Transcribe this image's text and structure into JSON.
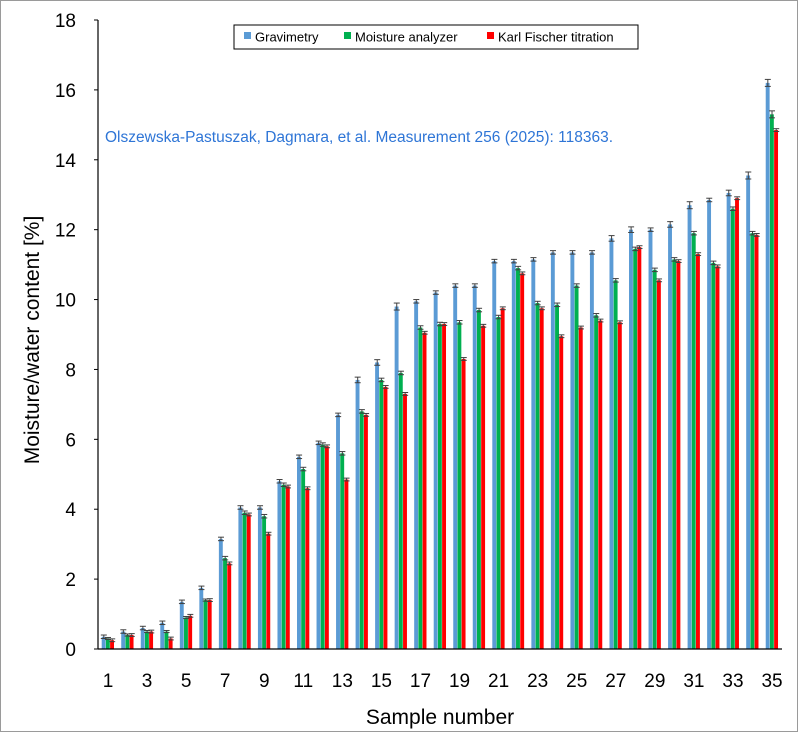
{
  "chart_data": {
    "type": "bar",
    "title": "",
    "xlabel": "Sample number",
    "ylabel": "Moisture/water content [%]",
    "ylim": [
      0,
      18
    ],
    "yticks": [
      "0",
      "2",
      "4",
      "6",
      "8",
      "10",
      "12",
      "14",
      "16",
      "18"
    ],
    "grid": false,
    "legend_position": "top-center",
    "categories": [
      "1",
      "2",
      "3",
      "4",
      "5",
      "6",
      "7",
      "8",
      "9",
      "10",
      "11",
      "12",
      "13",
      "14",
      "15",
      "16",
      "17",
      "18",
      "19",
      "20",
      "21",
      "22",
      "23",
      "24",
      "25",
      "26",
      "27",
      "28",
      "29",
      "30",
      "31",
      "32",
      "33",
      "34",
      "35"
    ],
    "x_tick_labels": [
      "1",
      "3",
      "5",
      "7",
      "9",
      "11",
      "13",
      "15",
      "17",
      "19",
      "21",
      "23",
      "25",
      "27",
      "29",
      "31",
      "33",
      "35"
    ],
    "series": [
      {
        "name": "Gravimetry",
        "color": "#5b9bd5",
        "values": [
          0.35,
          0.5,
          0.6,
          0.75,
          1.35,
          1.75,
          3.15,
          4.05,
          4.05,
          4.8,
          5.5,
          5.9,
          6.7,
          7.7,
          8.2,
          9.8,
          9.95,
          10.2,
          10.4,
          10.4,
          11.1,
          11.1,
          11.15,
          11.35,
          11.35,
          11.35,
          11.75,
          12.0,
          12.0,
          12.15,
          12.7,
          12.85,
          13.05,
          13.55,
          16.2
        ],
        "errors": [
          0.05,
          0.05,
          0.05,
          0.05,
          0.05,
          0.05,
          0.05,
          0.05,
          0.05,
          0.05,
          0.05,
          0.05,
          0.05,
          0.08,
          0.08,
          0.1,
          0.05,
          0.05,
          0.05,
          0.05,
          0.05,
          0.05,
          0.05,
          0.05,
          0.05,
          0.05,
          0.08,
          0.08,
          0.05,
          0.08,
          0.1,
          0.05,
          0.08,
          0.1,
          0.1
        ]
      },
      {
        "name": "Moisture analyzer",
        "color": "#00b050",
        "values": [
          0.3,
          0.4,
          0.5,
          0.5,
          0.9,
          1.4,
          2.6,
          3.9,
          3.8,
          4.7,
          5.15,
          5.85,
          5.6,
          6.8,
          7.7,
          7.9,
          9.2,
          9.3,
          9.35,
          9.7,
          9.5,
          10.9,
          9.9,
          9.85,
          10.4,
          9.55,
          10.55,
          11.45,
          10.85,
          11.15,
          11.9,
          11.05,
          12.6,
          11.9,
          15.3
        ],
        "errors": [
          0.03,
          0.03,
          0.03,
          0.03,
          0.03,
          0.03,
          0.05,
          0.05,
          0.05,
          0.05,
          0.05,
          0.05,
          0.05,
          0.05,
          0.05,
          0.05,
          0.05,
          0.05,
          0.05,
          0.05,
          0.05,
          0.05,
          0.05,
          0.05,
          0.05,
          0.05,
          0.05,
          0.05,
          0.05,
          0.05,
          0.05,
          0.05,
          0.05,
          0.05,
          0.1
        ]
      },
      {
        "name": "Karl Fischer titration",
        "color": "#ff0000",
        "values": [
          0.25,
          0.4,
          0.5,
          0.3,
          0.95,
          1.4,
          2.45,
          3.85,
          3.3,
          4.65,
          4.6,
          5.8,
          4.85,
          6.7,
          7.5,
          7.3,
          9.05,
          9.3,
          8.3,
          9.25,
          9.75,
          10.75,
          9.75,
          8.95,
          9.2,
          9.4,
          9.35,
          11.5,
          10.55,
          11.1,
          11.3,
          10.95,
          12.9,
          11.85,
          14.85
        ]
      }
    ],
    "annotation": "Olszewska-Pastuszak, Dagmara, et al. Measurement 256 (2025): 118363.",
    "annotation_color": "#2e75d6"
  }
}
